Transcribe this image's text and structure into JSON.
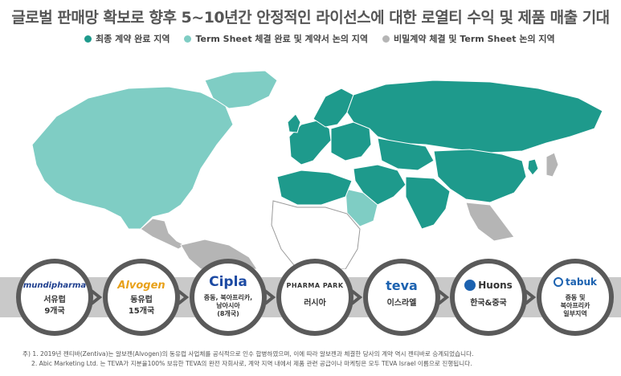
{
  "title": "글로벌 판매망 확보로 향후 5~10년간 안정적인 라이선스에 대한 로열티 수익 및 제품 매출 기대",
  "legend": [
    {
      "label": "최종 계약 완료 지역",
      "color": "#1e9a8c"
    },
    {
      "label": "Term Sheet 체결 완료 및 계약서 논의 지역",
      "color": "#7fcdc4"
    },
    {
      "label": "비밀계약 체결 및 Term Sheet 논의 지역",
      "color": "#b5b5b5"
    }
  ],
  "partners": [
    {
      "logo": "mundipharma",
      "label": "서유럽",
      "label2": "9개국",
      "logo_color": "#1f3f8f"
    },
    {
      "logo": "Alvogen",
      "label": "동유럽",
      "label2": "15개국",
      "logo_color": "#e8a11a"
    },
    {
      "logo": "Cipla",
      "label": "중동, 북아프리카,",
      "label2": "남아시아",
      "label3": "(8개국)",
      "logo_color": "#1c4aa3"
    },
    {
      "logo": "PHARMA PARK",
      "label": "러시아",
      "label2": "",
      "logo_color": "#333333"
    },
    {
      "logo": "teva",
      "label": "이스라엘",
      "label2": "",
      "logo_color": "#1c62b0"
    },
    {
      "logo": "Huons",
      "label": "한국&중국",
      "label2": "",
      "logo_color": "#1c62b0"
    },
    {
      "logo": "tabuk",
      "label": "중동 및",
      "label2": "북아프리카",
      "label3": "일부지역",
      "logo_color": "#1c62b0"
    }
  ],
  "notes": [
    "주) 1. 2019년 젠티바(Zentiva)는 알보젠(Alvogen)의 동유럽 사업체를 공식적으로 인수 합병하였으며, 이에 따라 알보젠과 체결한 당사의 계약 역시 젠티바로 승계되었습니다.",
    "2. Abic Marketing Ltd. 는 TEVA가 지분율100% 보유한 TEVA의 완전 자회사로, 계약 지역 내에서 제품 관련 공급이나 마케팅은 모두 TEVA Israel 이름으로 진행됩니다."
  ]
}
